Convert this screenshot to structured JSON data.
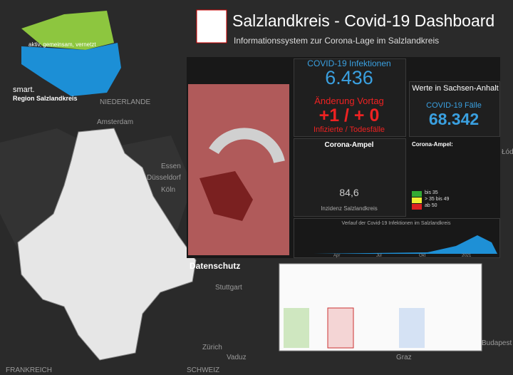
{
  "header": {
    "title": "Salzlandkreis - Covid-19 Dashboard",
    "subtitle": "Informationssystem zur Corona-Lage im Salzlandkreis"
  },
  "logo": {
    "slogan": "aktiv, gemeinsam, vernetzt",
    "brand": "smart.",
    "region": "Region Salzlandkreis"
  },
  "map_labels": [
    "NIEDERLANDE",
    "Amsterdam",
    "Essen",
    "Düsseldorf",
    "Köln",
    "Stuttgart",
    "Zürich",
    "Vaduz",
    "SCHWEIZ",
    "FRANKREICH",
    "Graz",
    "Budapest",
    "Łódź"
  ],
  "dashboard": {
    "infections": {
      "title": "COVID-19 Infektionen",
      "value": "6.436",
      "change_title": "Änderung Vortag",
      "change": "+1 / + 0",
      "change_label": "Infizierte / Todesfälle"
    },
    "ampel": {
      "title": "Corona-Ampel",
      "value": "84,6",
      "label": "Inzidenz Salzlandkreis",
      "heading": "Corona-Ampel:",
      "legend": [
        "bis 35",
        "> 35 bis 49",
        "ab 50"
      ]
    },
    "state": {
      "title": "Werte in Sachsen-Anhalt",
      "cases_title": "COVID-19 Fälle",
      "cases": "68.342"
    },
    "chart": {
      "title": "Verlauf der Covid-19 Infektionen im Salzlandkreis",
      "months": [
        "Apr",
        "Jul",
        "Okt",
        "2021"
      ]
    },
    "footer": "Datenschutz"
  }
}
